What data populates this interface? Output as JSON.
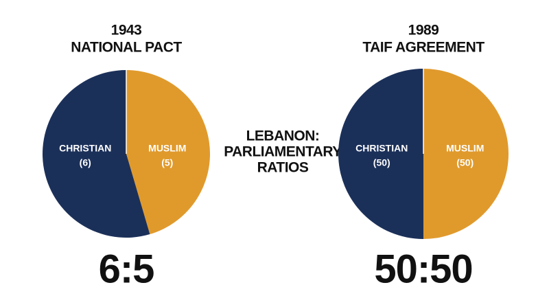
{
  "title": [
    "LEBANON:",
    "PARLIAMENTARY",
    "RATIOS"
  ],
  "chart_data": [
    {
      "type": "pie",
      "year": "1943",
      "title": "NATIONAL PACT",
      "categories": [
        "CHRISTIAN",
        "MUSLIM"
      ],
      "values": [
        6,
        5
      ],
      "value_labels": [
        "(6)",
        "(5)"
      ],
      "colors": [
        "#1b3059",
        "#e09a2c"
      ],
      "annotation": "6:5"
    },
    {
      "type": "pie",
      "year": "1989",
      "title": "TAIF AGREEMENT",
      "categories": [
        "CHRISTIAN",
        "MUSLIM"
      ],
      "values": [
        50,
        50
      ],
      "value_labels": [
        "(50)",
        "(50)"
      ],
      "colors": [
        "#1b3059",
        "#e09a2c"
      ],
      "annotation": "50:50"
    }
  ]
}
